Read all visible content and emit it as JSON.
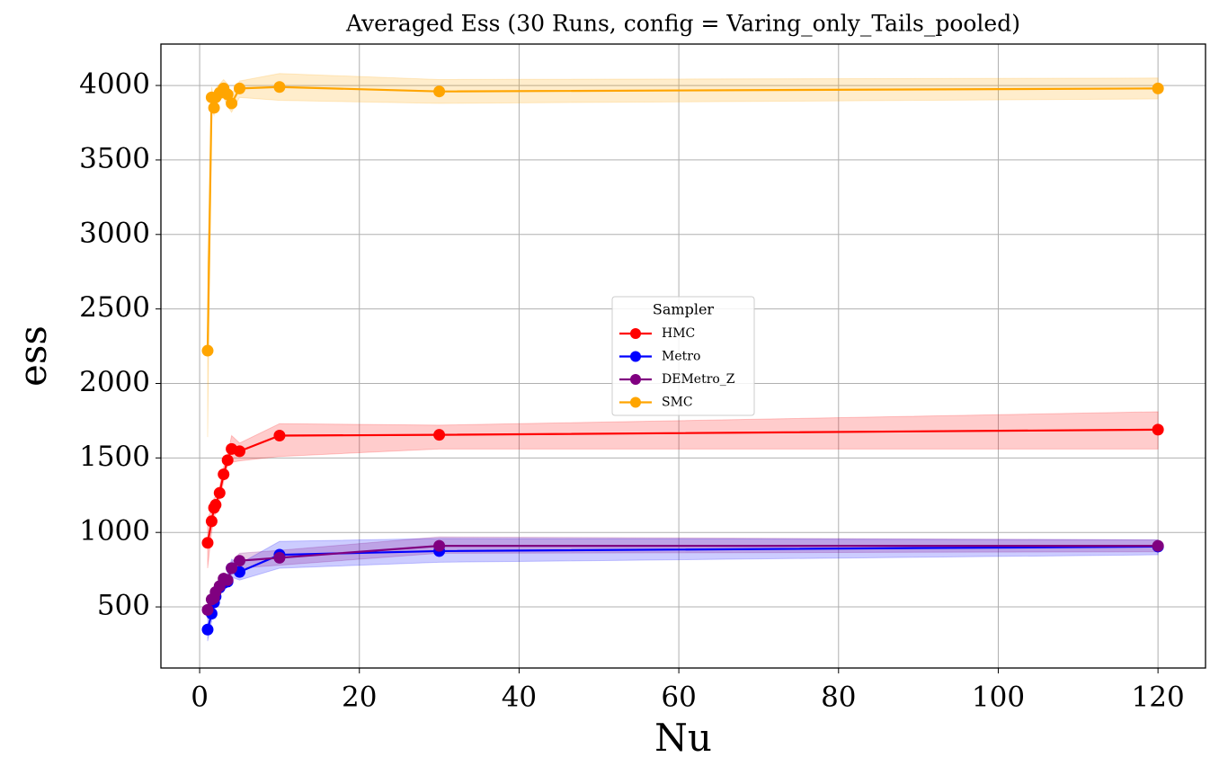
{
  "chart_data": {
    "type": "line",
    "title": "Averaged Ess (30 Runs, config = Varing_only_Tails_pooled)",
    "x_label": "Nu",
    "y_label": "ess",
    "x": [
      1,
      1.5,
      1.8,
      2,
      2.5,
      3,
      3.5,
      4,
      5,
      10,
      30,
      120
    ],
    "series": [
      {
        "name": "HMC",
        "color": "#ff0000",
        "values": [
          930,
          1075,
          1165,
          1185,
          1265,
          1390,
          1485,
          1560,
          1545,
          1650,
          1655,
          1690
        ],
        "lower": [
          760,
          1000,
          1100,
          1130,
          1220,
          1340,
          1450,
          1470,
          1480,
          1510,
          1560,
          1560
        ],
        "upper": [
          1100,
          1150,
          1230,
          1240,
          1310,
          1440,
          1520,
          1650,
          1600,
          1730,
          1720,
          1810
        ]
      },
      {
        "name": "Metro",
        "color": "#0000ff",
        "values": [
          348,
          455,
          530,
          570,
          630,
          660,
          670,
          760,
          735,
          850,
          875,
          905
        ],
        "lower": [
          270,
          400,
          490,
          530,
          590,
          620,
          640,
          700,
          680,
          760,
          800,
          850
        ],
        "upper": [
          420,
          510,
          590,
          620,
          670,
          700,
          720,
          820,
          790,
          940,
          960,
          950
        ]
      },
      {
        "name": "DEMetro_Z",
        "color": "#800080",
        "values": [
          480,
          550,
          560,
          600,
          640,
          690,
          680,
          760,
          810,
          830,
          910,
          910
        ],
        "lower": [
          420,
          500,
          520,
          560,
          610,
          650,
          640,
          720,
          760,
          780,
          860,
          870
        ],
        "upper": [
          540,
          600,
          610,
          640,
          680,
          730,
          720,
          800,
          860,
          880,
          970,
          950
        ]
      },
      {
        "name": "SMC",
        "color": "#ffa500",
        "values": [
          2220,
          3920,
          3850,
          3920,
          3950,
          3980,
          3940,
          3880,
          3980,
          3990,
          3960,
          3980
        ],
        "lower": [
          1640,
          3840,
          3800,
          3870,
          3900,
          3920,
          3860,
          3820,
          3920,
          3900,
          3880,
          3910
        ],
        "upper": [
          2800,
          3990,
          3900,
          3980,
          4010,
          4040,
          4010,
          3940,
          4030,
          4080,
          4040,
          4050
        ]
      }
    ],
    "legend_title": "Sampler",
    "legend_loc": "center",
    "xlim": [
      -4.85,
      125.95
    ],
    "xticks": [
      0,
      20,
      40,
      60,
      80,
      100,
      120
    ],
    "ylim": [
      90,
      4278
    ],
    "yticks": [
      500,
      1000,
      1500,
      2000,
      2500,
      3000,
      3500,
      4000
    ],
    "grid": true
  }
}
